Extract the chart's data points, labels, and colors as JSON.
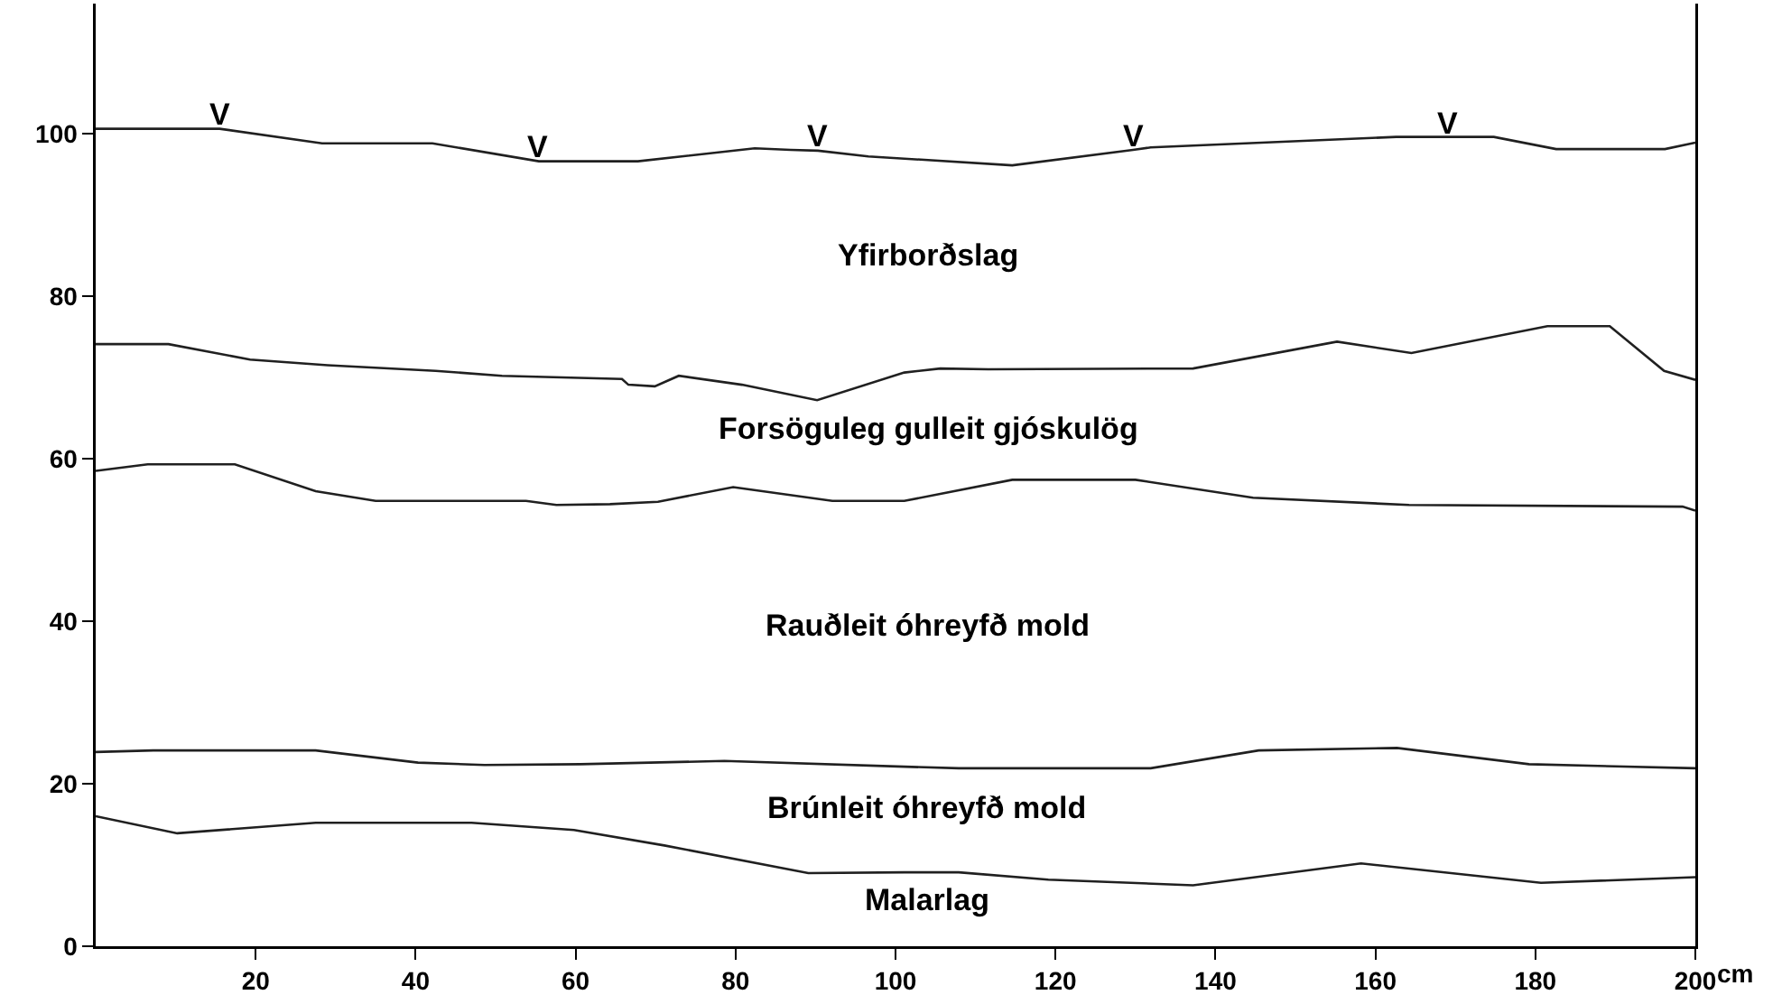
{
  "chart_data": {
    "type": "line",
    "xlabel": "cm",
    "xlim": [
      0,
      200
    ],
    "ylim": [
      0,
      116
    ],
    "xticks": [
      20,
      40,
      60,
      80,
      100,
      120,
      140,
      160,
      180,
      200
    ],
    "yticks": [
      0,
      20,
      40,
      60,
      80,
      100
    ],
    "grid": false,
    "marker": "none",
    "line_style": "solid",
    "series": [
      {
        "color": "#202020",
        "x": [
          0,
          15.5,
          28.3,
          42.1,
          55.4,
          67.8,
          82.4,
          86.9,
          90.3,
          96.6,
          114.6,
          129.7,
          131.9,
          162.6,
          169.1,
          174.8,
          182.6,
          196.2,
          200
        ],
        "values": [
          100.6,
          100.6,
          98.8,
          98.8,
          96.6,
          96.6,
          98.2,
          98.0,
          97.9,
          97.2,
          96.1,
          98.0,
          98.3,
          99.6,
          99.6,
          99.6,
          98.1,
          98.1,
          98.9
        ]
      },
      {
        "color": "#202020",
        "x": [
          0,
          9.1,
          19.3,
          29,
          42.5,
          50.8,
          65.8,
          66.6,
          69.9,
          72.9,
          80.8,
          90.2,
          101.1,
          105.6,
          111.6,
          137.2,
          155.2,
          164.5,
          181.5,
          189.3,
          196.1,
          200
        ],
        "values": [
          74.1,
          74.1,
          72.2,
          71.5,
          70.8,
          70.2,
          69.8,
          69.1,
          68.9,
          70.2,
          69.1,
          67.2,
          70.6,
          71.1,
          71,
          71.1,
          74.4,
          73,
          76.3,
          76.3,
          70.8,
          69.7
        ]
      },
      {
        "color": "#202020",
        "x": [
          0,
          6.5,
          17.4,
          27.5,
          35,
          53.8,
          57.6,
          64.3,
          70.3,
          79.7,
          92.1,
          101.1,
          114.6,
          130,
          144.7,
          164.2,
          198.4,
          200
        ],
        "values": [
          58.5,
          59.3,
          59.3,
          56,
          54.8,
          54.8,
          54.3,
          54.4,
          54.7,
          56.5,
          54.8,
          54.8,
          57.4,
          57.4,
          55.2,
          54.3,
          54.1,
          53.6
        ]
      },
      {
        "color": "#202020",
        "x": [
          0,
          7.2,
          27.5,
          40.3,
          48.6,
          60.6,
          78.6,
          101.1,
          107.9,
          131.9,
          145.4,
          162.7,
          179.2,
          200
        ],
        "values": [
          23.9,
          24.1,
          24.1,
          22.6,
          22.3,
          22.4,
          22.8,
          22.1,
          21.9,
          21.9,
          24.1,
          24.4,
          22.4,
          21.9
        ]
      },
      {
        "color": "#202020",
        "x": [
          0,
          10.2,
          27.5,
          47,
          59.8,
          71.1,
          89.1,
          101.1,
          107.9,
          119.1,
          137.2,
          158.2,
          180.7,
          200
        ],
        "values": [
          16,
          13.9,
          15.2,
          15.2,
          14.3,
          12.4,
          9,
          9.1,
          9.1,
          8.2,
          7.5,
          10.2,
          7.8,
          8.5
        ]
      }
    ],
    "annotations": [
      {
        "text": "V",
        "x": 15.5,
        "y": 100.6
      },
      {
        "text": "V",
        "x": 55.4,
        "y": 96.6
      },
      {
        "text": "V",
        "x": 90.3,
        "y": 97.9
      },
      {
        "text": "V",
        "x": 129.7,
        "y": 98.0
      },
      {
        "text": "V",
        "x": 169.1,
        "y": 99.6
      },
      "Yfirborðslag",
      "Forsöguleg gulleit gjóskulög",
      "Rauðleit óhreyfð mold",
      "Brúnleit óhreyfð mold",
      "Malarlag"
    ]
  }
}
